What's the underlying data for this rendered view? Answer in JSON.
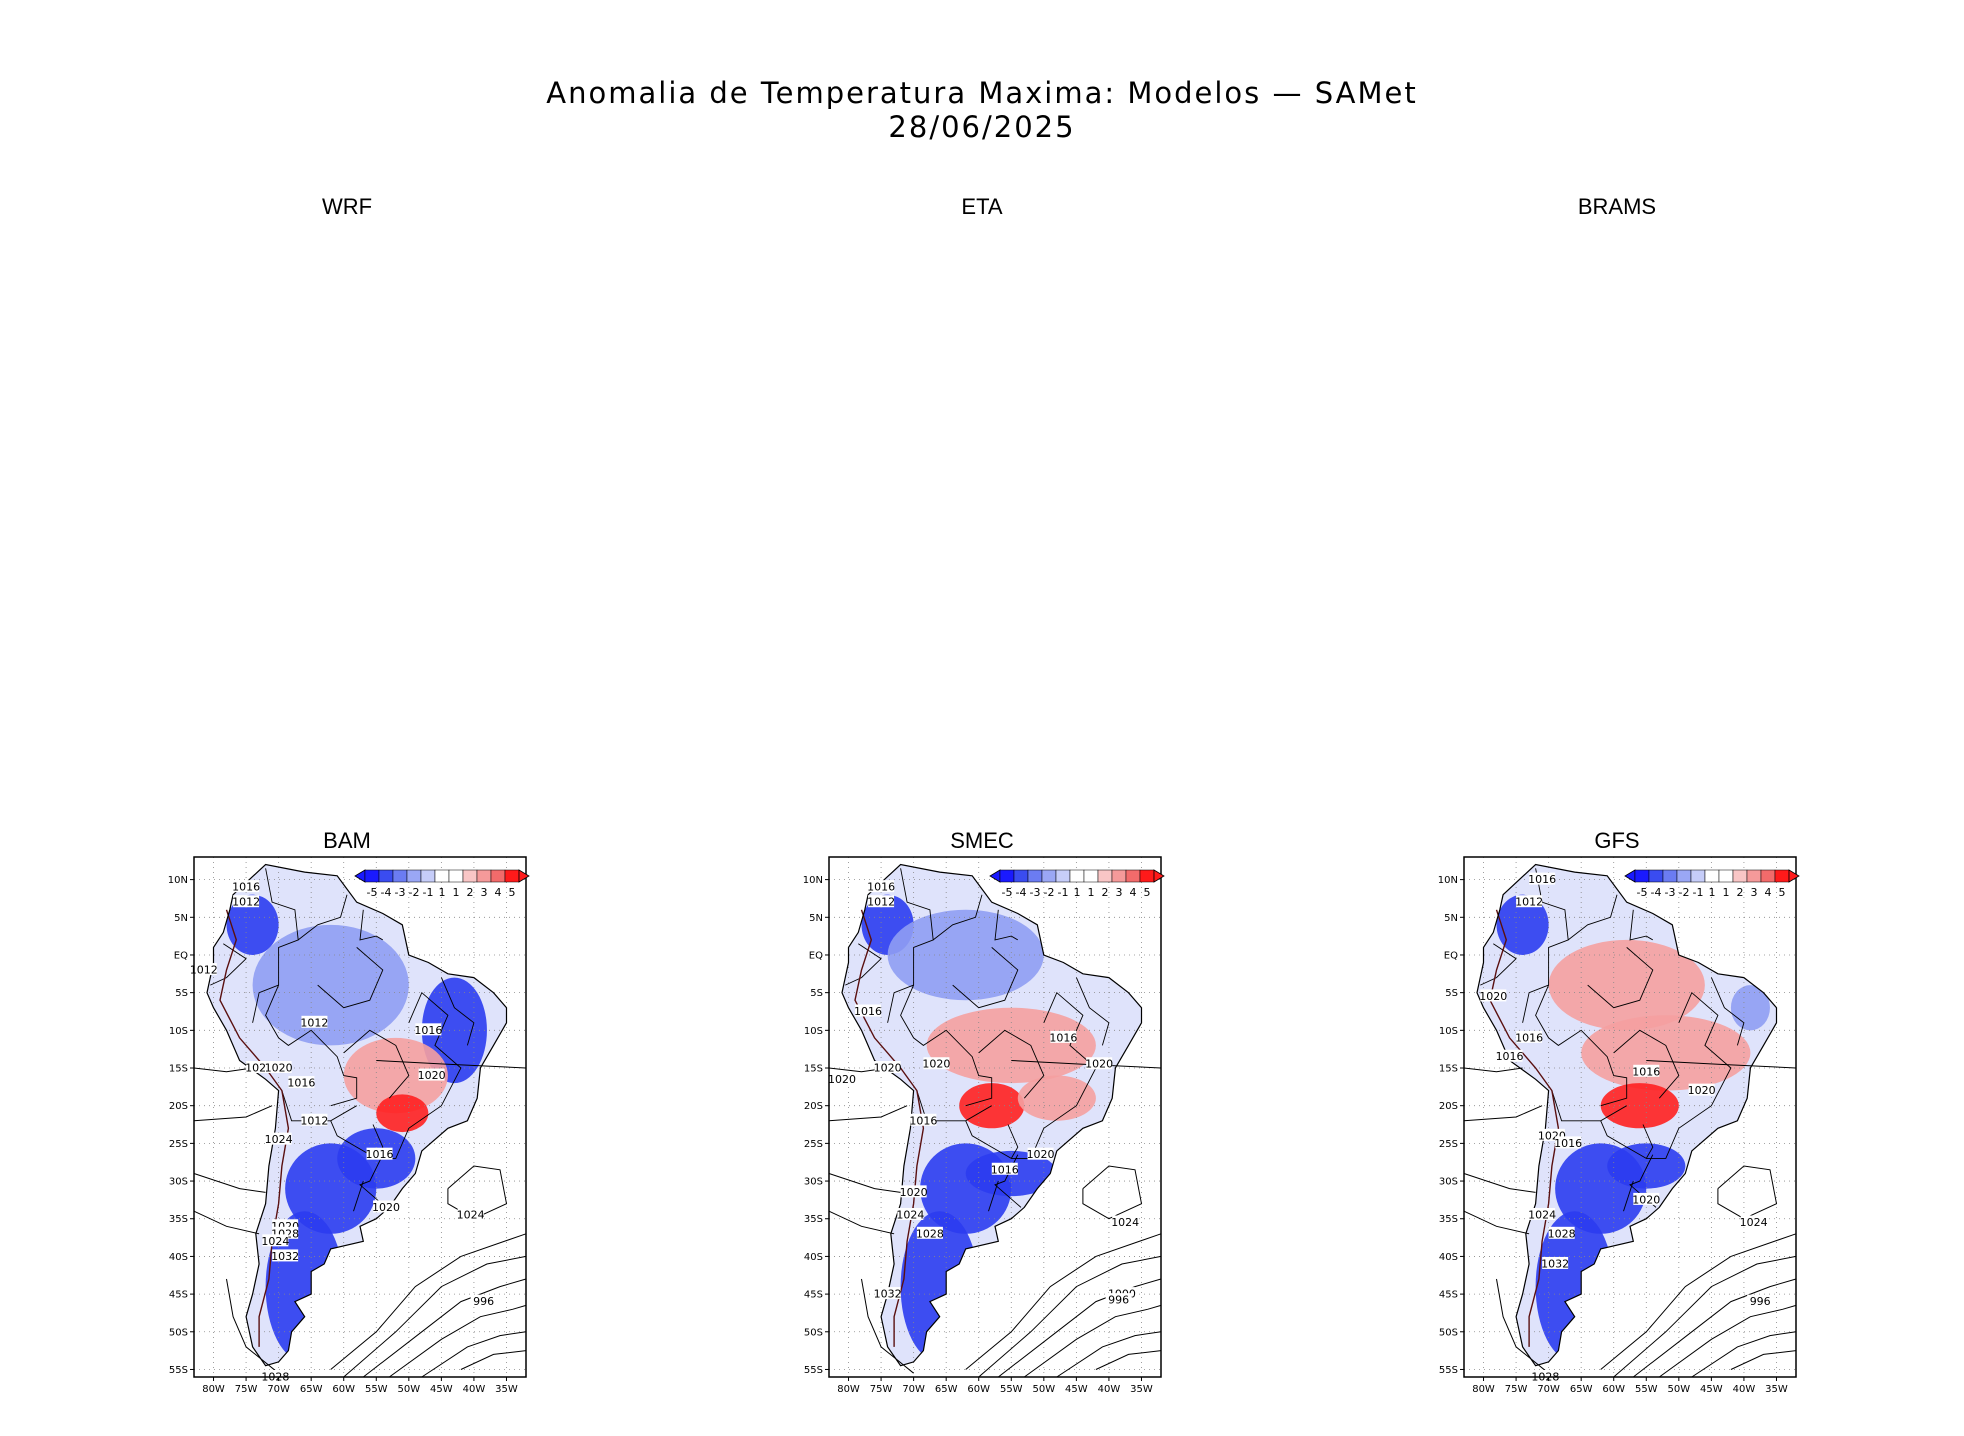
{
  "figure": {
    "title": "Anomalia de Temperatura Maxima: Modelos — SAMet",
    "date": "28/06/2025"
  },
  "panels": [
    {
      "name": "WRF",
      "has_map": false
    },
    {
      "name": "ETA",
      "has_map": false
    },
    {
      "name": "BRAMS",
      "has_map": false
    },
    {
      "name": "BAM",
      "has_map": true
    },
    {
      "name": "SMEC",
      "has_map": true
    },
    {
      "name": "GFS",
      "has_map": true
    }
  ],
  "axes": {
    "lat_labels": [
      "10N",
      "5N",
      "EQ",
      "5S",
      "10S",
      "15S",
      "20S",
      "25S",
      "30S",
      "35S",
      "40S",
      "45S",
      "50S",
      "55S"
    ],
    "lon_labels": [
      "80W",
      "75W",
      "70W",
      "65W",
      "60W",
      "55W",
      "50W",
      "45W",
      "40W",
      "35W"
    ]
  },
  "colorbar": {
    "labels": [
      "-5",
      "-4",
      "-3",
      "-2",
      "-1",
      "1",
      "1",
      "2",
      "3",
      "4",
      "5"
    ],
    "colors": [
      "#1a1aff",
      "#3a4cf0",
      "#6b7cf2",
      "#9aa7f5",
      "#c6cdf9",
      "#ffffff",
      "#ffffff",
      "#f9c6c6",
      "#f59a9a",
      "#f26b6b",
      "#ff1a1a"
    ]
  },
  "isobar_labels": {
    "BAM": [
      "1016",
      "1012",
      "1012",
      "1012",
      "1016",
      "1020",
      "1020",
      "1020",
      "1016",
      "1012",
      "1024",
      "1016",
      "1020",
      "1024",
      "1020",
      "1028",
      "1024",
      "1032",
      "996",
      "1028"
    ],
    "SMEC": [
      "1016",
      "1012",
      "1016",
      "1020",
      "1020",
      "1020",
      "1016",
      "1020",
      "1016",
      "1020",
      "1016",
      "1020",
      "1024",
      "1024",
      "1028",
      "1032",
      "1000",
      "996"
    ],
    "GFS": [
      "1016",
      "1012",
      "1020",
      "1016",
      "1016",
      "1016",
      "1020",
      "1020",
      "1016",
      "1020",
      "1024",
      "1024",
      "1028",
      "1032",
      "996",
      "1028"
    ]
  },
  "colors": {
    "land_cold": "#2b3cf0",
    "land_cool": "#8f9df3",
    "land_warm": "#f5a0a0",
    "land_hot": "#ff2020",
    "contour": "#000000",
    "grid": "#888888"
  }
}
